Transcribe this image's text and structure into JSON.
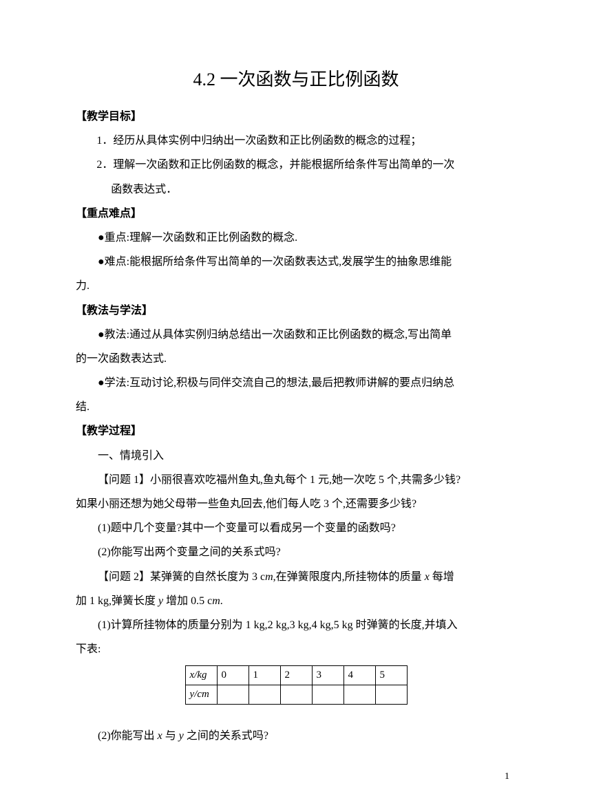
{
  "title": "4.2 一次函数与正比例函数",
  "sections": {
    "goals": {
      "head": "【教学目标】",
      "item1": "1．经历从具体实例中归纳出一次函数和正比例函数的概念的过程；",
      "item2": "2．理解一次函数和正比例函数的概念，并能根据所给条件写出简单的一次",
      "item2b": "函数表达式．"
    },
    "keypoints": {
      "head": "【重点难点】",
      "p1": "●重点:理解一次函数和正比例函数的概念.",
      "p2": "●难点:能根据所给条件写出简单的一次函数表达式,发展学生的抽象思维能",
      "p2b": "力."
    },
    "methods": {
      "head": "【教法与学法】",
      "p1": "●教法:通过从具体实例归纳总结出一次函数和正比例函数的概念,写出简单",
      "p1b": "的一次函数表达式.",
      "p2": "●学法:互动讨论,积极与同伴交流自己的想法,最后把教师讲解的要点归纳总",
      "p2b": "结."
    },
    "process": {
      "head": "【教学过程】",
      "intro": "一、情境引入",
      "q1a": "【问题 1】小丽很喜欢吃福州鱼丸,鱼丸每个 1 元,她一次吃 5 个,共需多少钱?",
      "q1b": "如果小丽还想为她父母带一些鱼丸回去,他们每人吃 3 个,还需要多少钱?",
      "q1c": "(1)题中几个变量?其中一个变量可以看成另一个变量的函数吗?",
      "q1d": "(2)你能写出两个变量之间的关系式吗?",
      "q2a_pre": "【问题 2】某弹簧的自然长度为 3 c",
      "q2a_m": "m",
      "q2a_mid": ",在弹簧限度内,所挂物体的质量 ",
      "q2a_x": "x",
      "q2a_suf": " 每增",
      "q2b_pre": "加 1 kg,弹簧长度 ",
      "q2b_y": "y",
      "q2b_mid": " 增加 0.5 c",
      "q2b_m": "m",
      "q2b_suf": ".",
      "q2c": "(1)计算所挂物体的质量分别为 1 kg,2 kg,3 kg,4 kg,5 kg 时弹簧的长度,并填入",
      "q2cb": "下表:",
      "q2d_pre": "(2)你能写出 ",
      "q2d_x": "x",
      "q2d_mid": " 与 ",
      "q2d_y": "y",
      "q2d_suf": " 之间的关系式吗?"
    }
  },
  "table": {
    "row1_head": "x/kg",
    "row1": [
      "0",
      "1",
      "2",
      "3",
      "4",
      "5"
    ],
    "row2_head": "y/cm",
    "row2": [
      "",
      "",
      "",
      "",
      "",
      ""
    ]
  },
  "page_number": "1",
  "colors": {
    "text": "#000000",
    "background": "#ffffff",
    "border": "#000000"
  },
  "typography": {
    "title_fontsize": 26,
    "body_fontsize": 16,
    "line_height": 2.2,
    "font_family": "SimSun"
  }
}
